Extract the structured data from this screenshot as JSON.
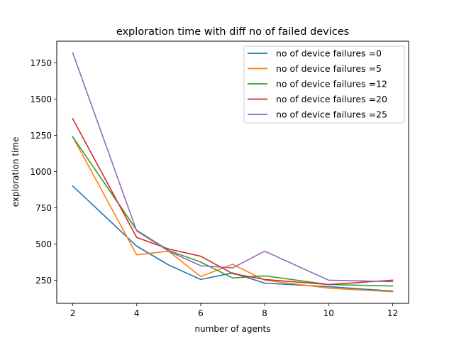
{
  "chart_data": {
    "type": "line",
    "title": "exploration time with diff no of failed devices",
    "xlabel": "number of agents",
    "ylabel": "exploration time",
    "x": [
      2,
      4,
      5,
      6,
      7,
      8,
      10,
      12
    ],
    "xlim": [
      1.5,
      12.5
    ],
    "ylim": [
      90,
      1900
    ],
    "xticks": [
      2,
      4,
      6,
      8,
      10,
      12
    ],
    "yticks": [
      250,
      500,
      750,
      1000,
      1250,
      1500,
      1750
    ],
    "grid": false,
    "legend_position": "top-right",
    "series": [
      {
        "name": "no of device failures =0",
        "color": "#1f77b4",
        "values": [
          900,
          485,
          355,
          255,
          300,
          230,
          205,
          175
        ]
      },
      {
        "name": "no of device failures =5",
        "color": "#ff7f0e",
        "values": [
          1240,
          425,
          450,
          275,
          360,
          250,
          195,
          170
        ]
      },
      {
        "name": "no of device failures =12",
        "color": "#2ca02c",
        "values": [
          1240,
          595,
          455,
          375,
          265,
          280,
          220,
          210
        ]
      },
      {
        "name": "no of device failures =20",
        "color": "#d62728",
        "values": [
          1365,
          545,
          465,
          415,
          295,
          255,
          220,
          250
        ]
      },
      {
        "name": "no of device failures =25",
        "color": "#9467bd",
        "values": [
          1820,
          590,
          450,
          350,
          335,
          450,
          250,
          240
        ]
      }
    ]
  }
}
